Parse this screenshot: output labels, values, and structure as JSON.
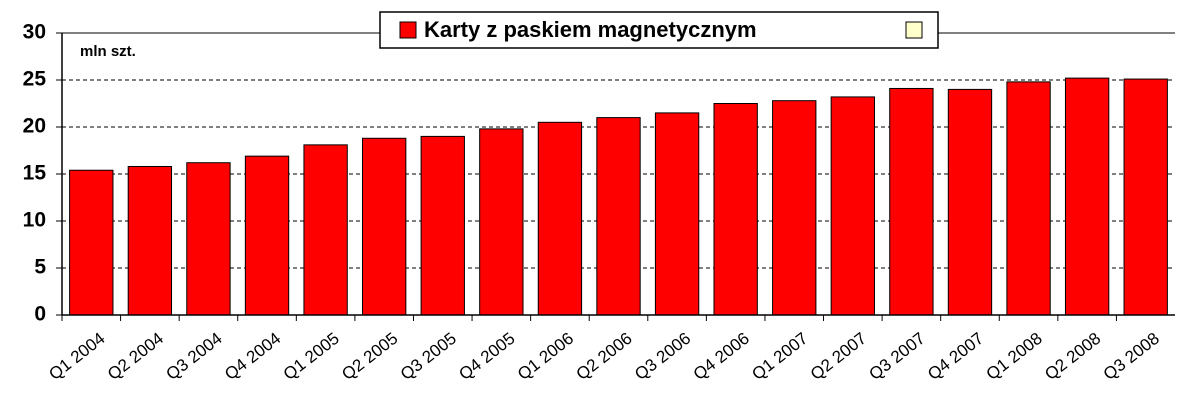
{
  "chart_data": {
    "type": "bar",
    "annotation": "mln szt.",
    "categories": [
      "Q1 2004",
      "Q2 2004",
      "Q3 2004",
      "Q4 2004",
      "Q1 2005",
      "Q2 2005",
      "Q3 2005",
      "Q4 2005",
      "Q1 2006",
      "Q2 2006",
      "Q3 2006",
      "Q4 2006",
      "Q1 2007",
      "Q2 2007",
      "Q3 2007",
      "Q4 2007",
      "Q1 2008",
      "Q2 2008",
      "Q3 2008"
    ],
    "series": [
      {
        "name": "Karty z paskiem magnetycznym",
        "color": "#ff0000",
        "values": [
          15.4,
          15.8,
          16.2,
          16.9,
          18.1,
          18.8,
          19.0,
          19.8,
          20.5,
          21.0,
          21.5,
          22.5,
          22.8,
          23.2,
          24.1,
          24.0,
          24.8,
          25.2,
          25.1
        ]
      }
    ],
    "ylim": [
      0,
      30
    ],
    "yticks": [
      0,
      5,
      10,
      15,
      20,
      25,
      30
    ],
    "grid": true
  }
}
